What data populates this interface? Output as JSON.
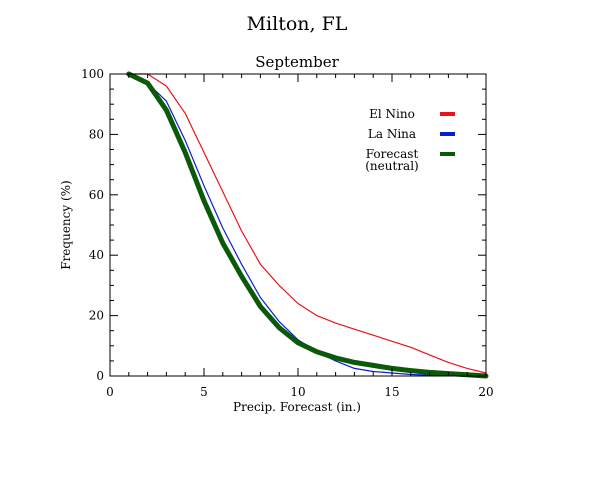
{
  "chart_data": {
    "type": "line",
    "title": "Milton, FL",
    "subtitle": "September",
    "xlabel": "Precip. Forecast (in.)",
    "ylabel": "Frequency (%)",
    "xlim": [
      0,
      20
    ],
    "ylim": [
      0,
      100
    ],
    "x_ticks": [
      0,
      5,
      10,
      15,
      20
    ],
    "y_ticks": [
      0,
      20,
      40,
      60,
      80,
      100
    ],
    "grid": false,
    "legend_position": "top-right",
    "series": [
      {
        "name": "El Nino",
        "color": "#e8141b",
        "points": [
          [
            1,
            100
          ],
          [
            2,
            100
          ],
          [
            3,
            96
          ],
          [
            4,
            87
          ],
          [
            5,
            74
          ],
          [
            6,
            61
          ],
          [
            7,
            48
          ],
          [
            8,
            37
          ],
          [
            9,
            30
          ],
          [
            10,
            24
          ],
          [
            11,
            20
          ],
          [
            12,
            17.5
          ],
          [
            13,
            15.5
          ],
          [
            14,
            13.5
          ],
          [
            15,
            11.5
          ],
          [
            16,
            9.5
          ],
          [
            17,
            7
          ],
          [
            18,
            4.5
          ],
          [
            19,
            2.5
          ],
          [
            20,
            1
          ]
        ]
      },
      {
        "name": "La Nina",
        "color": "#0a1ed1",
        "points": [
          [
            1,
            100
          ],
          [
            2,
            97
          ],
          [
            3,
            91
          ],
          [
            4,
            78
          ],
          [
            5,
            63
          ],
          [
            6,
            49
          ],
          [
            7,
            37
          ],
          [
            8,
            26
          ],
          [
            9,
            18
          ],
          [
            10,
            12
          ],
          [
            11,
            8
          ],
          [
            12,
            5
          ],
          [
            13,
            2.5
          ],
          [
            14,
            1.5
          ],
          [
            15,
            1
          ],
          [
            16,
            0.5
          ],
          [
            17,
            0.3
          ],
          [
            18,
            0.2
          ],
          [
            19,
            0.1
          ],
          [
            20,
            0
          ]
        ]
      },
      {
        "name": "Forecast (neutral)",
        "label_lines": [
          "Forecast",
          "(neutral)"
        ],
        "color": "#0a5a0a",
        "points": [
          [
            1,
            100
          ],
          [
            2,
            97
          ],
          [
            3,
            88
          ],
          [
            4,
            74
          ],
          [
            5,
            58
          ],
          [
            6,
            44
          ],
          [
            7,
            33
          ],
          [
            8,
            23
          ],
          [
            9,
            16
          ],
          [
            10,
            11
          ],
          [
            11,
            8
          ],
          [
            12,
            6
          ],
          [
            13,
            4.5
          ],
          [
            14,
            3.5
          ],
          [
            15,
            2.5
          ],
          [
            16,
            1.8
          ],
          [
            17,
            1.2
          ],
          [
            18,
            0.8
          ],
          [
            19,
            0.4
          ],
          [
            20,
            0
          ]
        ]
      }
    ]
  }
}
